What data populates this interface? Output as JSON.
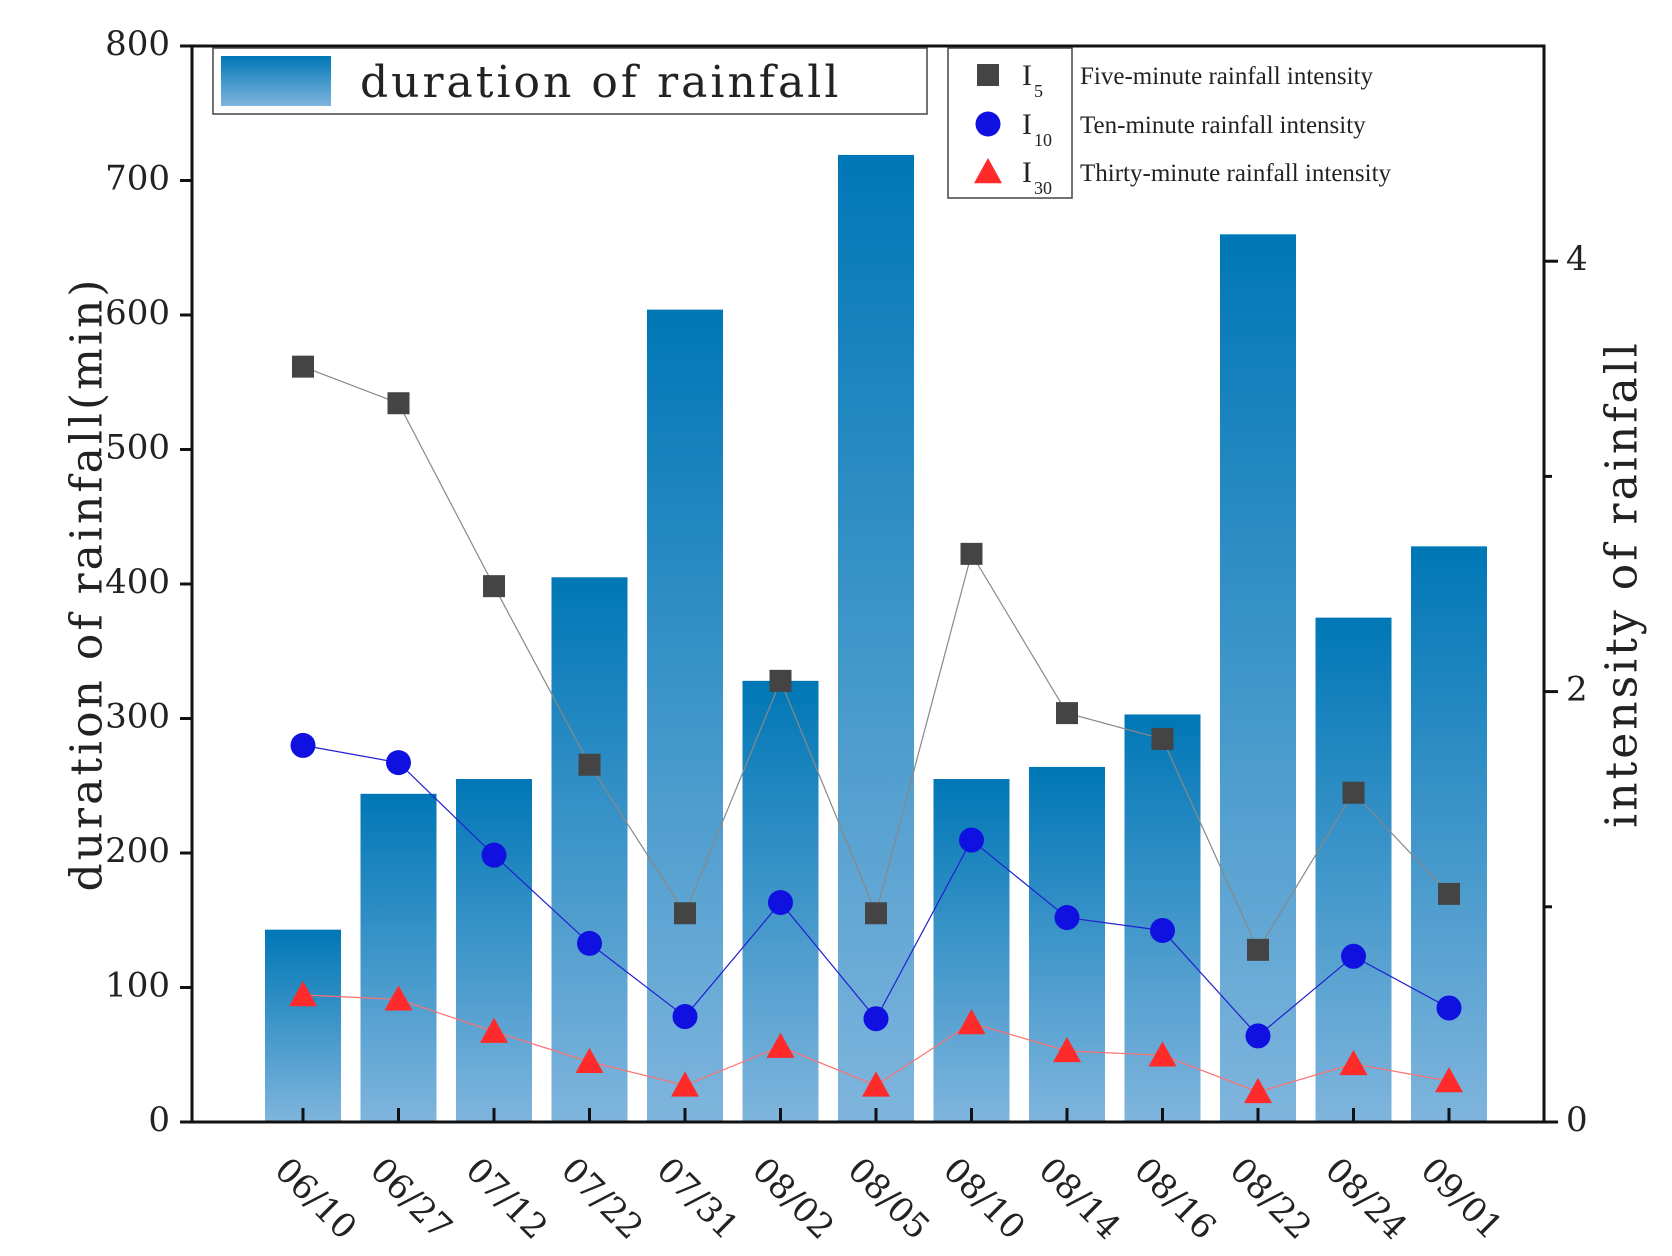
{
  "chart_data": {
    "type": "bar",
    "categories": [
      "06/10",
      "06/27",
      "07/12",
      "07/22",
      "07/31",
      "08/02",
      "08/05",
      "08/10",
      "08/14",
      "08/16",
      "08/22",
      "08/24",
      "09/01"
    ],
    "bar_series": {
      "name": "duration of rainfall",
      "values": [
        143,
        244,
        255,
        405,
        604,
        328,
        719,
        255,
        264,
        303,
        660,
        375,
        428
      ],
      "color_top": "#0077b6",
      "color_bottom": "#7fb5dd"
    },
    "line_series": [
      {
        "symbol": "I",
        "subscript": "5",
        "name": "Five-minute rainfall intensity",
        "marker": "square",
        "color": "#444444",
        "line_color": "#888888",
        "values": [
          3.51,
          3.34,
          2.49,
          1.66,
          0.97,
          2.05,
          0.97,
          2.64,
          1.9,
          1.78,
          0.8,
          1.53,
          1.06
        ]
      },
      {
        "symbol": "I",
        "subscript": "10",
        "name": "Ten-minute rainfall intensity",
        "marker": "circle",
        "color": "#1010e0",
        "line_color": "#2020d0",
        "values": [
          1.75,
          1.67,
          1.24,
          0.83,
          0.49,
          1.02,
          0.48,
          1.31,
          0.95,
          0.89,
          0.4,
          0.77,
          0.53
        ]
      },
      {
        "symbol": "I",
        "subscript": "30",
        "name": "Thirty-minute rainfall intensity",
        "marker": "triangle",
        "color": "#ff2a2a",
        "line_color": "#ff7070",
        "values": [
          0.59,
          0.57,
          0.42,
          0.28,
          0.17,
          0.35,
          0.17,
          0.46,
          0.33,
          0.31,
          0.14,
          0.27,
          0.19
        ]
      }
    ],
    "title": "",
    "xlabel": "",
    "ylabel": "duration of rainfall(min)",
    "y2label": "intensity of rainfall",
    "ylim": [
      0,
      800
    ],
    "y2lim": [
      0,
      5
    ],
    "yticks": [
      0,
      100,
      200,
      300,
      400,
      500,
      600,
      700,
      800
    ],
    "y2ticks": [
      0,
      2,
      4
    ],
    "y2minor": [
      1,
      3
    ],
    "grid": false,
    "legend_bar_position": "top-left",
    "legend_lines_position": "top-right"
  }
}
